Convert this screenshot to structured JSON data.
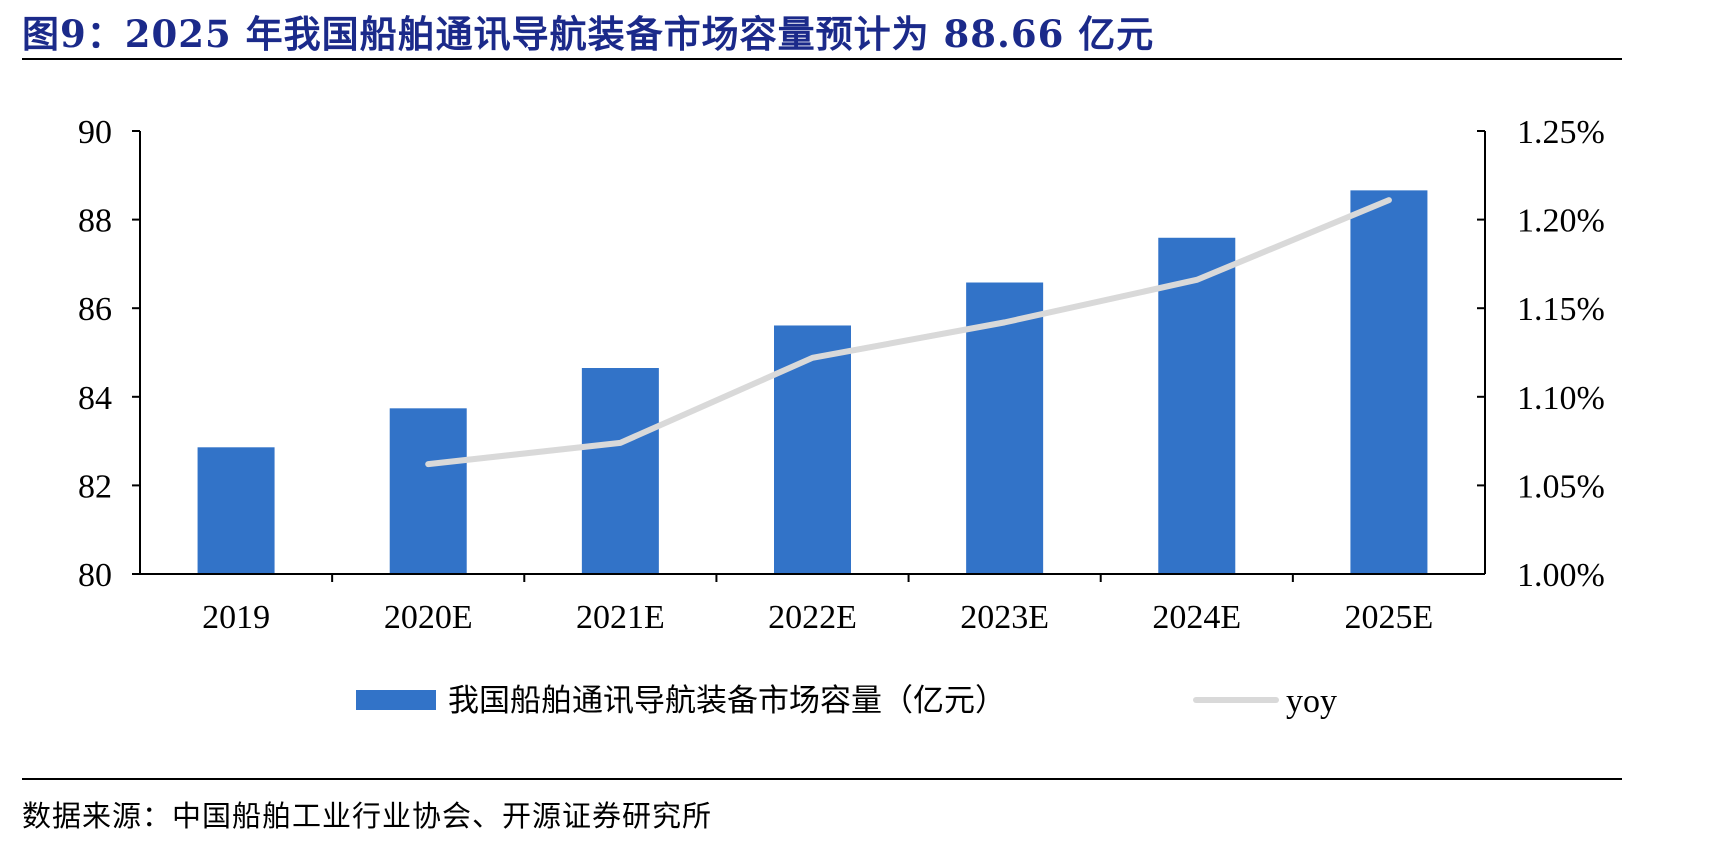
{
  "figure": {
    "title": "图9：2025 年我国船舶通讯导航装备市场容量预计为 88.66 亿元",
    "source": "数据来源：中国船舶工业行业协会、开源证券研究所"
  },
  "colors": {
    "title": "#1b2a8a",
    "bar": "#3273c8",
    "line": "#d9d9d9",
    "axis": "#000000"
  },
  "chart_data": {
    "type": "bar",
    "categories": [
      "2019",
      "2020E",
      "2021E",
      "2022E",
      "2023E",
      "2024E",
      "2025E"
    ],
    "series": [
      {
        "name": "我国船舶通讯导航装备市场容量（亿元）",
        "type": "bar",
        "axis": "left",
        "values": [
          82.86,
          83.74,
          84.65,
          85.61,
          86.58,
          87.59,
          88.66
        ]
      },
      {
        "name": "yoy",
        "type": "line",
        "axis": "right",
        "values": [
          null,
          1.062,
          1.074,
          1.122,
          1.142,
          1.166,
          1.211
        ]
      }
    ],
    "left_axis": {
      "ylim": [
        80,
        90
      ],
      "ticks": [
        80,
        82,
        84,
        86,
        88,
        90
      ],
      "tick_labels": [
        "80",
        "82",
        "84",
        "86",
        "88",
        "90"
      ]
    },
    "right_axis": {
      "ylim": [
        1.0,
        1.25
      ],
      "ticks": [
        1.0,
        1.05,
        1.1,
        1.15,
        1.2,
        1.25
      ],
      "tick_labels": [
        "1.00%",
        "1.05%",
        "1.10%",
        "1.15%",
        "1.20%",
        "1.25%"
      ]
    },
    "legend": {
      "placement": "bottom-center",
      "bar_label": "我国船舶通讯导航装备市场容量（亿元）",
      "line_label": "yoy"
    },
    "grid": false
  }
}
